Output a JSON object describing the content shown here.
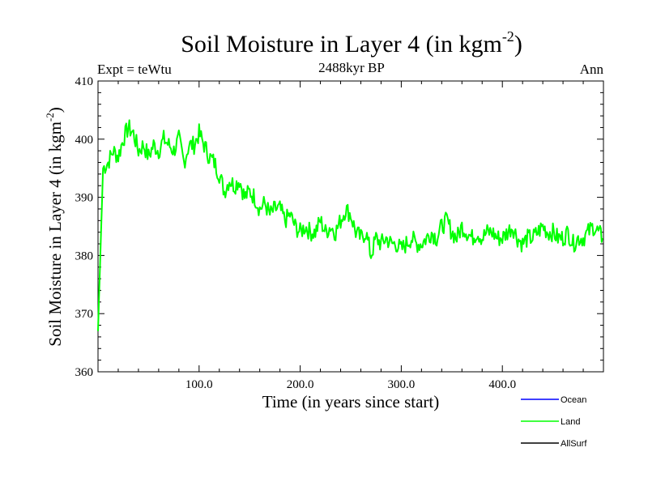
{
  "chart_data": {
    "type": "line",
    "title": "Soil Moisture in Layer 4 (in kgm",
    "title_superscript": "-2",
    "title_suffix": ")",
    "subtitle_left": "Expt = teWtu",
    "subtitle_center": "2488kyr BP",
    "subtitle_right": "Ann",
    "xlabel": "Time (in years since start)",
    "ylabel": "Soil Moisture in Layer 4 (in kgm",
    "ylabel_superscript": "-2",
    "ylabel_suffix": ")",
    "xlim": [
      0,
      500
    ],
    "ylim": [
      360,
      410
    ],
    "x_ticks": [
      100,
      200,
      300,
      400
    ],
    "x_tick_labels": [
      "100.0",
      "200.0",
      "300.0",
      "400.0"
    ],
    "y_ticks": [
      360,
      370,
      380,
      390,
      400,
      410
    ],
    "y_tick_labels": [
      "360",
      "370",
      "380",
      "390",
      "400",
      "410"
    ],
    "legend": [
      {
        "name": "Ocean",
        "color": "#0000ff"
      },
      {
        "name": "Land",
        "color": "#00ff00"
      },
      {
        "name": "AllSurf",
        "color": "#000000"
      }
    ],
    "series": [
      {
        "name": "Land",
        "color": "#00ff00",
        "x": [
          0,
          5,
          10,
          15,
          20,
          25,
          30,
          35,
          40,
          45,
          50,
          55,
          60,
          65,
          70,
          75,
          80,
          85,
          90,
          95,
          100,
          105,
          110,
          115,
          120,
          125,
          130,
          135,
          140,
          145,
          150,
          155,
          160,
          165,
          170,
          175,
          180,
          185,
          190,
          195,
          200,
          205,
          210,
          215,
          220,
          225,
          230,
          235,
          240,
          245,
          250,
          255,
          260,
          265,
          270,
          275,
          280,
          285,
          290,
          295,
          300,
          305,
          310,
          315,
          320,
          325,
          330,
          335,
          340,
          345,
          350,
          355,
          360,
          365,
          370,
          375,
          380,
          385,
          390,
          395,
          400,
          405,
          410,
          415,
          420,
          425,
          430,
          435,
          440,
          445,
          450,
          455,
          460,
          465,
          470,
          475,
          480,
          485,
          490,
          495,
          499
        ],
        "values": [
          367,
          395,
          396,
          398,
          397,
          400,
          402,
          401,
          398,
          399,
          397,
          399,
          398,
          400,
          399,
          398,
          400,
          396,
          399,
          399,
          401,
          399,
          397,
          396,
          394,
          391,
          393,
          392,
          393,
          390,
          391,
          390,
          388,
          389,
          387,
          388,
          388,
          386,
          387,
          385,
          384,
          385,
          384,
          384,
          386,
          384,
          385,
          384,
          386,
          388,
          387,
          384,
          383,
          384,
          380,
          383,
          382,
          383,
          382,
          382,
          381,
          382,
          383,
          382,
          382,
          383,
          384,
          383,
          385,
          386,
          384,
          383,
          385,
          384,
          383,
          384,
          383,
          384,
          384,
          383,
          383,
          384,
          385,
          383,
          382,
          383,
          383,
          384,
          385,
          384,
          384,
          383,
          383,
          384,
          382,
          383,
          383,
          384,
          385,
          384,
          383
        ]
      },
      {
        "name": "Ocean",
        "color": "#0000ff",
        "x": [],
        "values": []
      },
      {
        "name": "AllSurf",
        "color": "#000000",
        "x": [],
        "values": []
      }
    ]
  }
}
